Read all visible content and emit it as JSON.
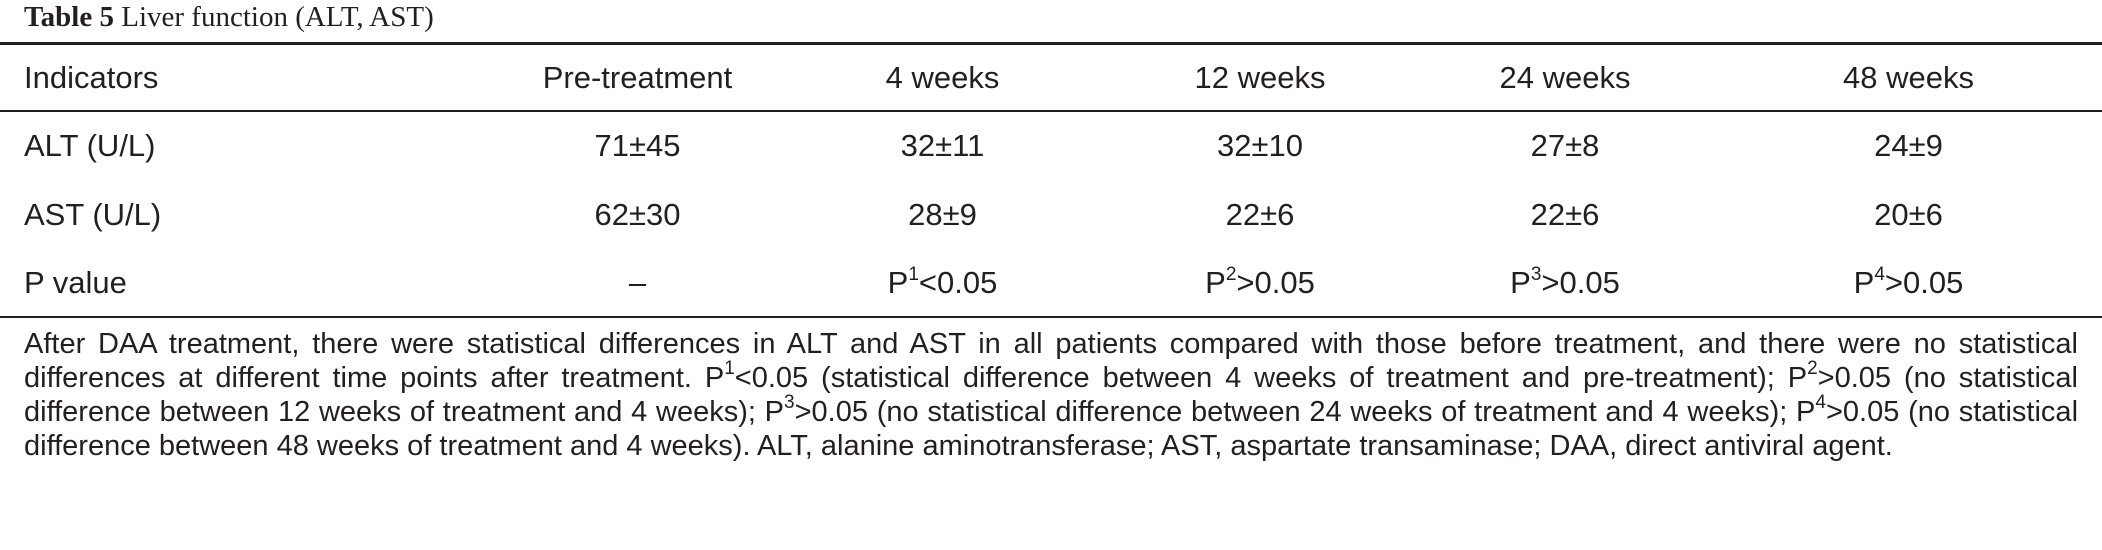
{
  "caption": {
    "number": "Table 5",
    "title": "Liver function (ALT, AST)"
  },
  "table": {
    "headers": [
      "Indicators",
      "Pre-treatment",
      "4 weeks",
      "12 weeks",
      "24 weeks",
      "48 weeks"
    ],
    "rows": [
      {
        "indicator": "ALT (U/L)",
        "values": [
          "71±45",
          "32±11",
          "32±10",
          "27±8",
          "24±9"
        ]
      },
      {
        "indicator": "AST (U/L)",
        "values": [
          "62±30",
          "28±9",
          "22±6",
          "22±6",
          "20±6"
        ]
      },
      {
        "indicator": "P value",
        "pre": "–",
        "p": [
          {
            "base": "P",
            "sup": "1",
            "rest": "<0.05"
          },
          {
            "base": "P",
            "sup": "2",
            "rest": ">0.05"
          },
          {
            "base": "P",
            "sup": "3",
            "rest": ">0.05"
          },
          {
            "base": "P",
            "sup": "4",
            "rest": ">0.05"
          }
        ]
      }
    ]
  },
  "footnote": {
    "s1": "After DAA treatment, there were statistical differences in ALT and AST in all patients compared with those before treatment, and there were no statistical differences at different time points after treatment. P",
    "sup1": "1",
    "s2": "<0.05 (statistical difference between 4 weeks of treatment and pre-treatment); P",
    "sup2": "2",
    "s3": ">0.05 (no statistical difference between 12 weeks of treatment and 4 weeks); P",
    "sup3": "3",
    "s4": ">0.05 (no statistical difference between 24 weeks of treatment and 4 weeks); P",
    "sup4": "4",
    "s5": ">0.05 (no statistical difference between 48 weeks of treatment and 4 weeks). ALT, alanine aminotransferase; AST, aspartate transaminase; DAA, direct antiviral agent."
  }
}
